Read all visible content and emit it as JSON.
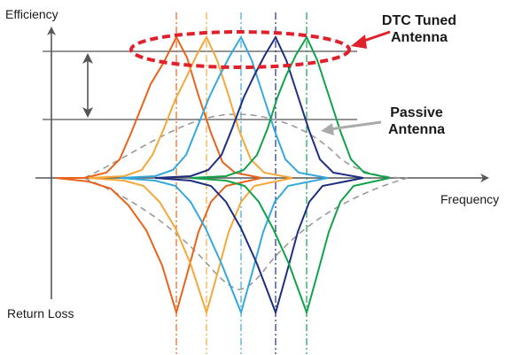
{
  "labels": {
    "y_axis_top": "Efficiency",
    "y_axis_bottom": "Return Loss",
    "x_axis": "Frequency",
    "dtc_line1": "DTC Tuned",
    "dtc_line2": "Antenna",
    "passive_line1": "Passive",
    "passive_line2": "Antenna"
  },
  "colors": {
    "axis": "#555555",
    "dtc_highlight": "#e0202a",
    "passive_curve": "#9a9a9a",
    "callout_arrow_gray": "#aaaaaa",
    "tuned_curves": [
      "#e8641c",
      "#f5a83a",
      "#35a8dc",
      "#1e2f80",
      "#12a24a"
    ]
  }
}
